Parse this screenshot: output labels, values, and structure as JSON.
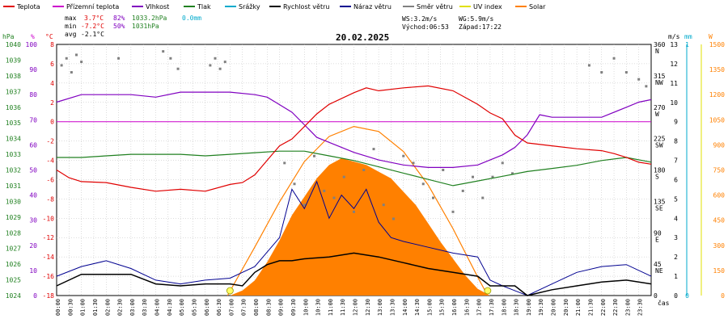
{
  "legend": [
    {
      "label": "Teplota",
      "color": "#e00000"
    },
    {
      "label": "Přízemní teplota",
      "color": "#cc00cc"
    },
    {
      "label": "Vlhkost",
      "color": "#8000c0"
    },
    {
      "label": "Tlak",
      "color": "#208020"
    },
    {
      "label": "Srážky",
      "color": "#00aacc"
    },
    {
      "label": "Rychlost větru",
      "color": "#000000"
    },
    {
      "label": "Náraz větru",
      "color": "#000090"
    },
    {
      "label": "Směr větru",
      "color": "#808080"
    },
    {
      "label": "UV index",
      "color": "#e0e000"
    },
    {
      "label": "Solar",
      "color": "#ff8000"
    }
  ],
  "stats": {
    "max_label": "max",
    "max_temp": "3.7°C",
    "max_hum": "82%",
    "max_press": "1033.2hPa",
    "max_rain": "0.0mm",
    "min_label": "min",
    "min_temp": "-7.2°C",
    "min_hum": "50%",
    "min_press": "1031hPa",
    "avg_label": "avg",
    "avg_temp": "-2.1°C"
  },
  "date": "20.02.2025",
  "wind_info": {
    "ws": "WS:3.2m/s",
    "wg": "WG:5.9m/s",
    "sunrise": "Východ:06:53",
    "sunset": "Západ:17:22"
  },
  "axes": {
    "hpa_unit": "hPa",
    "hum_unit": "%",
    "temp_unit": "°C",
    "ms_unit": "m/s",
    "mm_unit": "mm",
    "w_unit": "W",
    "xlabel": "čas",
    "hpa_ticks": [
      "1040",
      "1039",
      "1038",
      "1037",
      "1036",
      "1035",
      "1034",
      "1033",
      "1032",
      "1031",
      "1030",
      "1029",
      "1028",
      "1027",
      "1026",
      "1025",
      "1024"
    ],
    "hum_ticks": [
      "100",
      "90",
      "80",
      "70",
      "60",
      "50",
      "40",
      "30",
      "20",
      "10",
      "0"
    ],
    "temp_ticks": [
      "8",
      "6",
      "4",
      "2",
      "0",
      "-2",
      "-4",
      "-6",
      "-8",
      "-10",
      "-12",
      "-14",
      "-16",
      "-18"
    ],
    "dir_ticks": [
      {
        "deg": "360",
        "dir": "N"
      },
      {
        "deg": "315",
        "dir": "NW"
      },
      {
        "deg": "270",
        "dir": "W"
      },
      {
        "deg": "225",
        "dir": "SW"
      },
      {
        "deg": "180",
        "dir": "S"
      },
      {
        "deg": "135",
        "dir": "SE"
      },
      {
        "deg": "90",
        "dir": "E"
      },
      {
        "deg": "45",
        "dir": "NE"
      },
      {
        "deg": "0",
        "dir": ""
      }
    ],
    "ms_ticks": [
      "13",
      "12",
      "11",
      "10",
      "9",
      "8",
      "7",
      "6",
      "5",
      "4",
      "3",
      "2",
      "1",
      "0"
    ],
    "mm_ticks": [
      "1",
      "0"
    ],
    "w_ticks": [
      "1500",
      "1350",
      "1200",
      "1050",
      "900",
      "750",
      "600",
      "450",
      "300",
      "150",
      "0"
    ],
    "x_ticks": [
      "00:00",
      "00:30",
      "01:00",
      "01:30",
      "02:00",
      "02:30",
      "03:00",
      "03:30",
      "04:00",
      "04:30",
      "05:00",
      "05:30",
      "06:00",
      "06:30",
      "07:00",
      "07:30",
      "08:00",
      "08:30",
      "09:00",
      "09:30",
      "10:00",
      "10:30",
      "11:00",
      "11:30",
      "12:00",
      "12:30",
      "13:00",
      "13:30",
      "14:00",
      "14:30",
      "15:00",
      "15:30",
      "16:00",
      "16:30",
      "17:00",
      "17:30",
      "18:00",
      "18:30",
      "19:00",
      "19:30",
      "20:00",
      "20:30",
      "21:00",
      "21:30",
      "22:00",
      "22:30",
      "23:00",
      "23:30"
    ]
  },
  "chart_data": {
    "type": "line",
    "x_unit": "hour of day",
    "ylim_temp": [
      -18,
      8
    ],
    "ylim_hum": [
      0,
      100
    ],
    "ylim_press": [
      1024,
      1040
    ],
    "ylim_wind": [
      0,
      13
    ],
    "ylim_dir": [
      0,
      360
    ],
    "ylim_solar": [
      0,
      1500
    ],
    "ground_temp_line": 0,
    "temperature": {
      "x": [
        0,
        0.5,
        1,
        2,
        3,
        4,
        5,
        6,
        7,
        7.5,
        8,
        8.5,
        9,
        9.5,
        10,
        10.5,
        11,
        12,
        12.5,
        13,
        14,
        15,
        16,
        17,
        17.5,
        18,
        18.5,
        19,
        20,
        21,
        22,
        22.5,
        23,
        23.5,
        24
      ],
      "y": [
        -5,
        -5.8,
        -6.2,
        -6.3,
        -6.8,
        -7.2,
        -7.0,
        -7.2,
        -6.5,
        -6.3,
        -5.5,
        -4.0,
        -2.5,
        -1.8,
        -0.5,
        0.8,
        1.8,
        3.0,
        3.5,
        3.2,
        3.5,
        3.7,
        3.2,
        1.8,
        0.9,
        0.3,
        -1.4,
        -2.2,
        -2.5,
        -2.8,
        -3.0,
        -3.3,
        -3.7,
        -4.2,
        -4.4
      ]
    },
    "humidity": {
      "x": [
        0,
        1,
        2,
        3,
        4,
        5,
        6,
        7,
        8,
        8.5,
        9,
        9.5,
        10,
        10.5,
        11,
        12,
        13,
        14,
        15,
        16,
        17,
        17.5,
        18,
        18.5,
        19,
        19.5,
        20,
        21,
        22,
        23,
        23.5,
        24
      ],
      "y": [
        77,
        80,
        80,
        80,
        79,
        81,
        81,
        81,
        80,
        79,
        76,
        73,
        68,
        63,
        61,
        57,
        54,
        52,
        51,
        51,
        52,
        54,
        56,
        59,
        64,
        72,
        71,
        71,
        71,
        75,
        77,
        78
      ]
    },
    "pressure": {
      "x": [
        0,
        1,
        2,
        3,
        4,
        5,
        6,
        7,
        8,
        9,
        10,
        11,
        12,
        13,
        14,
        15,
        16,
        17,
        18,
        19,
        20,
        21,
        22,
        23,
        24
      ],
      "y": [
        1032.8,
        1032.8,
        1032.9,
        1033.0,
        1033.0,
        1033.0,
        1032.9,
        1033.0,
        1033.1,
        1033.2,
        1033.2,
        1032.9,
        1032.6,
        1032.2,
        1031.8,
        1031.4,
        1031.0,
        1031.3,
        1031.6,
        1031.9,
        1032.1,
        1032.3,
        1032.6,
        1032.8,
        1032.5
      ]
    },
    "wind_speed": {
      "x": [
        0,
        1,
        2,
        3,
        4,
        5,
        6,
        7,
        7.5,
        8,
        8.5,
        9,
        9.5,
        10,
        11,
        12,
        13,
        14,
        15,
        16,
        17,
        17.5,
        18,
        18.5,
        19,
        20,
        21,
        22,
        23,
        24
      ],
      "y": [
        0.5,
        1.1,
        1.1,
        1.1,
        0.6,
        0.5,
        0.6,
        0.6,
        0.5,
        1.2,
        1.6,
        1.8,
        1.8,
        1.9,
        2.0,
        2.2,
        2.0,
        1.7,
        1.4,
        1.2,
        1.0,
        0.5,
        0.5,
        0.5,
        0,
        0.3,
        0.5,
        0.7,
        0.8,
        0.6
      ]
    },
    "wind_gust": {
      "x": [
        0,
        1,
        2,
        3,
        4,
        5,
        6,
        7,
        8,
        9,
        9.5,
        10,
        10.5,
        11,
        11.5,
        12,
        12.5,
        13,
        13.5,
        14,
        15,
        16,
        17,
        17.5,
        18,
        19,
        20,
        21,
        22,
        23,
        24
      ],
      "y": [
        1.0,
        1.5,
        1.8,
        1.4,
        0.8,
        0.6,
        0.8,
        0.9,
        1.5,
        3.0,
        5.5,
        4.5,
        5.9,
        4.0,
        5.2,
        4.5,
        5.5,
        3.8,
        3.0,
        2.8,
        2.5,
        2.2,
        2.0,
        0.8,
        0.5,
        0,
        0.6,
        1.2,
        1.5,
        1.6,
        1.0
      ]
    },
    "solar": {
      "x": [
        7,
        7.5,
        8,
        8.5,
        9,
        9.5,
        10,
        10.5,
        11,
        11.5,
        12,
        12.5,
        13,
        13.5,
        14,
        14.5,
        15,
        15.5,
        16,
        16.5,
        17,
        17.5
      ],
      "y": [
        0,
        30,
        90,
        200,
        330,
        480,
        590,
        700,
        780,
        820,
        800,
        780,
        740,
        700,
        620,
        540,
        430,
        320,
        220,
        120,
        40,
        0
      ]
    },
    "solar_theoretical": {
      "x": [
        6.9,
        8,
        9,
        10,
        11,
        12,
        13,
        14,
        15,
        16,
        17,
        17.4
      ],
      "y": [
        0,
        290,
        560,
        800,
        950,
        1010,
        980,
        860,
        660,
        400,
        110,
        0
      ]
    },
    "uv_index_points": {
      "x": [
        7.0,
        17.4
      ],
      "y": [
        0,
        0
      ]
    },
    "wind_direction": {
      "x": [
        0.2,
        0.4,
        0.6,
        0.8,
        1.0,
        2.5,
        4.3,
        4.6,
        4.9,
        6.2,
        6.4,
        6.6,
        6.8,
        9.2,
        9.6,
        10.0,
        10.4,
        10.8,
        11.2,
        11.6,
        12.0,
        12.4,
        12.8,
        13.2,
        13.6,
        14.0,
        14.4,
        14.8,
        15.2,
        15.6,
        16.0,
        16.4,
        16.8,
        17.2,
        17.6,
        18.0,
        18.4,
        21.5,
        22.0,
        22.5,
        23.0,
        23.5,
        23.8
      ],
      "y": [
        330,
        340,
        320,
        345,
        335,
        340,
        350,
        340,
        325,
        330,
        340,
        325,
        335,
        190,
        160,
        130,
        200,
        150,
        140,
        170,
        120,
        180,
        210,
        130,
        110,
        200,
        190,
        160,
        140,
        180,
        120,
        150,
        170,
        140,
        170,
        190,
        175,
        330,
        320,
        340,
        320,
        310,
        300
      ]
    }
  }
}
